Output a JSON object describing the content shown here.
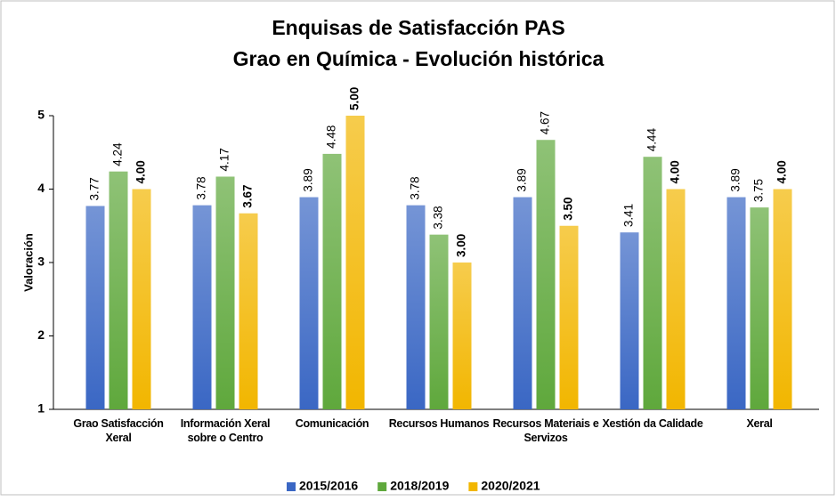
{
  "chart_data": {
    "type": "bar",
    "title": "Enquisas de Satisfacción PAS",
    "subtitle": "Grao en Química - Evolución histórica",
    "y_label": "Valoración",
    "categories": [
      "Grao Satisfacción Xeral",
      "Información Xeral sobre o Centro",
      "Comunicación",
      "Recursos Humanos",
      "Recursos Materiais e Servizos",
      "Xestión da Calidade",
      "Xeral"
    ],
    "series": [
      {
        "name": "2015/2016",
        "color": "#3a67c4",
        "values": [
          3.77,
          3.78,
          3.89,
          3.78,
          3.89,
          3.41,
          3.89
        ]
      },
      {
        "name": "2018/2019",
        "color": "#5fa83c",
        "values": [
          4.24,
          4.17,
          4.48,
          3.38,
          4.67,
          4.44,
          3.75
        ]
      },
      {
        "name": "2020/2021",
        "color": "#f2b600",
        "bold": true,
        "values": [
          4.0,
          3.67,
          5.0,
          3.0,
          3.5,
          4.0,
          4.0
        ],
        "value_labels": [
          "4.00",
          "3.67",
          "5.00",
          "3.00",
          "3.50",
          "4.00",
          "4.00"
        ]
      }
    ],
    "ylim": [
      1,
      5
    ],
    "yticks": [
      1,
      2,
      3,
      4,
      5
    ],
    "grid": false,
    "legend": "bottom"
  }
}
